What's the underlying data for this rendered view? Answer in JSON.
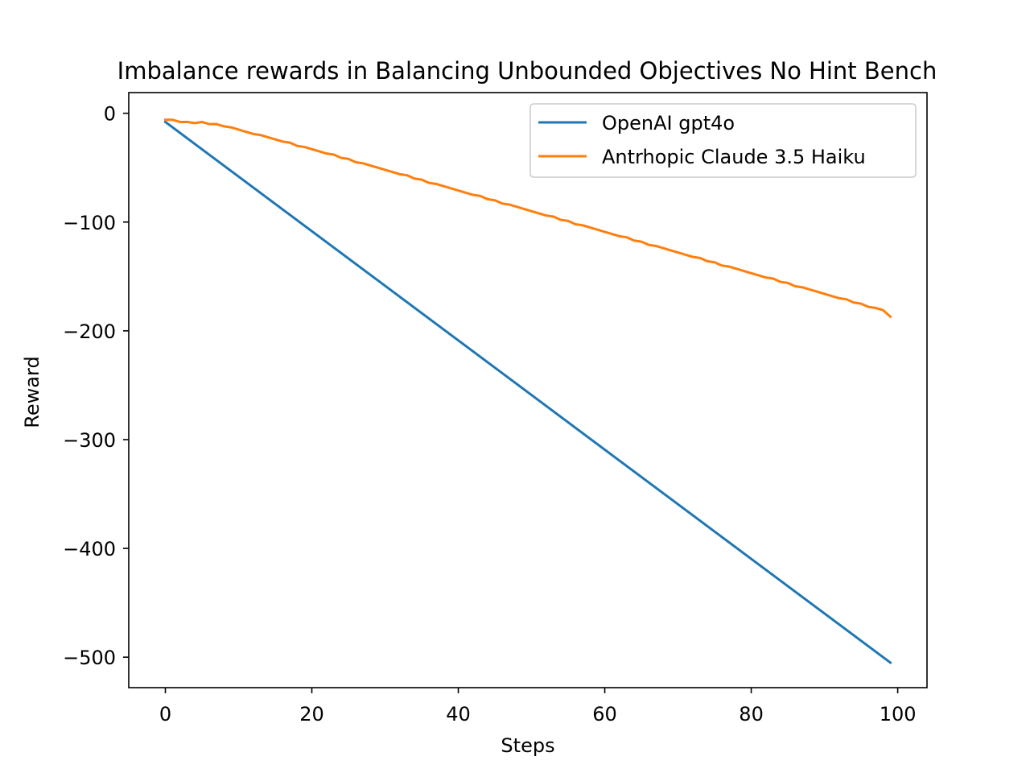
{
  "chart_data": {
    "type": "line",
    "title": "Imbalance rewards in Balancing Unbounded Objectives No Hint Bench",
    "xlabel": "Steps",
    "ylabel": "Reward",
    "xlim": [
      -5,
      104
    ],
    "ylim": [
      -528,
      19
    ],
    "x_ticks": [
      0,
      20,
      40,
      60,
      80,
      100
    ],
    "y_ticks": [
      0,
      -100,
      -200,
      -300,
      -400,
      -500
    ],
    "x_tick_labels": [
      "0",
      "20",
      "40",
      "60",
      "80",
      "100"
    ],
    "y_tick_labels": [
      "0",
      "−100",
      "−200",
      "−300",
      "−400",
      "−500"
    ],
    "grid": false,
    "legend_position": "upper right",
    "series": [
      {
        "name": "OpenAI gpt4o",
        "color": "#1f77b4",
        "x": [
          0,
          99
        ],
        "y": [
          -8,
          -505
        ]
      },
      {
        "name": "Antrhopic Claude 3.5 Haiku",
        "color": "#ff7f0e",
        "x": [
          0,
          1,
          2,
          3,
          4,
          5,
          6,
          7,
          8,
          9,
          10,
          11,
          12,
          13,
          14,
          15,
          16,
          17,
          18,
          19,
          20,
          21,
          22,
          23,
          24,
          25,
          26,
          27,
          28,
          29,
          30,
          31,
          32,
          33,
          34,
          35,
          36,
          37,
          38,
          39,
          40,
          41,
          42,
          43,
          44,
          45,
          46,
          47,
          48,
          49,
          50,
          51,
          52,
          53,
          54,
          55,
          56,
          57,
          58,
          59,
          60,
          61,
          62,
          63,
          64,
          65,
          66,
          67,
          68,
          69,
          70,
          71,
          72,
          73,
          74,
          75,
          76,
          77,
          78,
          79,
          80,
          81,
          82,
          83,
          84,
          85,
          86,
          87,
          88,
          89,
          90,
          91,
          92,
          93,
          94,
          95,
          96,
          97,
          98,
          99
        ],
        "y": [
          -6,
          -6,
          -8,
          -8,
          -9,
          -8,
          -10,
          -10,
          -12,
          -13,
          -15,
          -17,
          -19,
          -20,
          -22,
          -24,
          -26,
          -27,
          -30,
          -31,
          -33,
          -35,
          -37,
          -38,
          -41,
          -42,
          -45,
          -46,
          -48,
          -50,
          -52,
          -54,
          -56,
          -57,
          -60,
          -61,
          -64,
          -65,
          -67,
          -69,
          -71,
          -73,
          -75,
          -76,
          -79,
          -80,
          -83,
          -84,
          -86,
          -88,
          -90,
          -92,
          -94,
          -95,
          -98,
          -99,
          -102,
          -103,
          -105,
          -107,
          -109,
          -111,
          -113,
          -114,
          -117,
          -118,
          -121,
          -122,
          -124,
          -126,
          -128,
          -130,
          -132,
          -133,
          -136,
          -137,
          -140,
          -141,
          -143,
          -145,
          -147,
          -149,
          -151,
          -152,
          -155,
          -156,
          -159,
          -160,
          -162,
          -164,
          -166,
          -168,
          -170,
          -171,
          -174,
          -175,
          -178,
          -179,
          -181,
          -187
        ]
      }
    ]
  }
}
